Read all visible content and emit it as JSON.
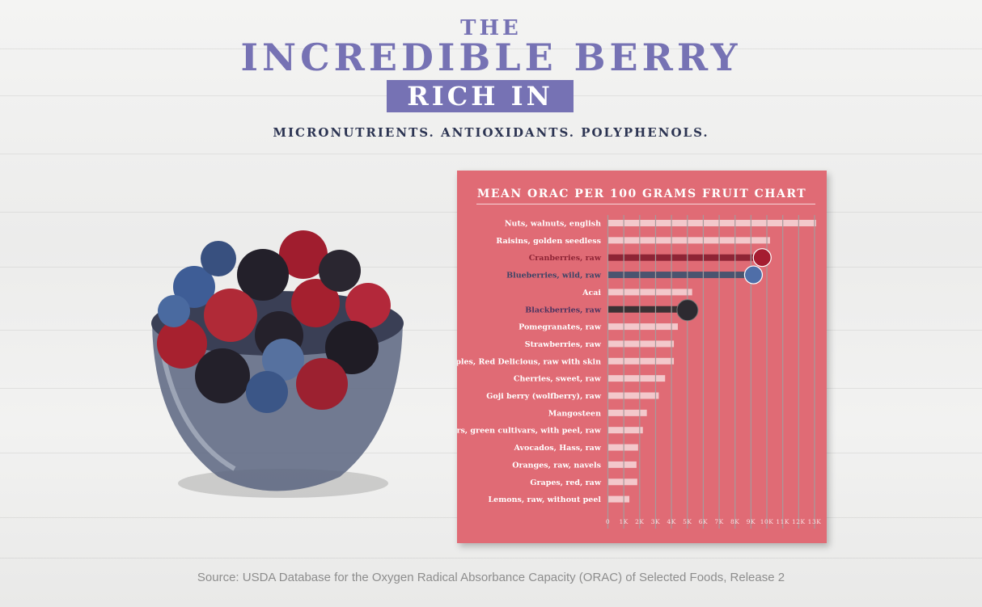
{
  "header": {
    "line1": "THE",
    "line2": "INCREDIBLE BERRY",
    "badge": "RICH IN",
    "subtitle": "MICRONUTRIENTS. ANTIOXIDANTS. POLYPHENOLS."
  },
  "source": "Source: USDA Database for the Oxygen Radical Absorbance Capacity (ORAC) of Selected Foods, Release 2",
  "colors": {
    "title": "#7672b4",
    "panel": "#e06b75",
    "bar_default": "#f3c8cb",
    "cranberry": "#8e2435",
    "blueberry": "#4b546f",
    "blackberry": "#3a3134"
  },
  "chart_data": {
    "type": "bar",
    "orientation": "horizontal",
    "title": "MEAN ORAC PER 100 GRAMS FRUIT CHART",
    "xlim": [
      0,
      13000
    ],
    "xticks": [
      "0",
      "1K",
      "2K",
      "3K",
      "4K",
      "5K",
      "6K",
      "7K",
      "8K",
      "9K",
      "10K",
      "11K",
      "12K",
      "13K"
    ],
    "grid": true,
    "categories": [
      "Nuts, walnuts, english",
      "Raisins, golden seedless",
      "Cranberries, raw",
      "Blueberries, wild, raw",
      "Acai",
      "Blackberries, raw",
      "Pomegranates, raw",
      "Strawberries, raw",
      "Apples, Red Delicious, raw with skin",
      "Cherries, sweet, raw",
      "Goji berry (wolfberry), raw",
      "Mangosteen",
      "Pears, green cultivars, with peel, raw",
      "Avocados, Hass, raw",
      "Oranges, raw, navels",
      "Grapes, red, raw",
      "Lemons, raw, without peel"
    ],
    "values": [
      13100,
      10200,
      9400,
      8850,
      5300,
      4550,
      4400,
      4150,
      4150,
      3600,
      3200,
      2450,
      2200,
      1900,
      1800,
      1850,
      1350
    ],
    "highlight": {
      "Cranberries, raw": "cranberry",
      "Blueberries, wild, raw": "blueberry",
      "Blackberries, raw": "blackberry"
    }
  }
}
